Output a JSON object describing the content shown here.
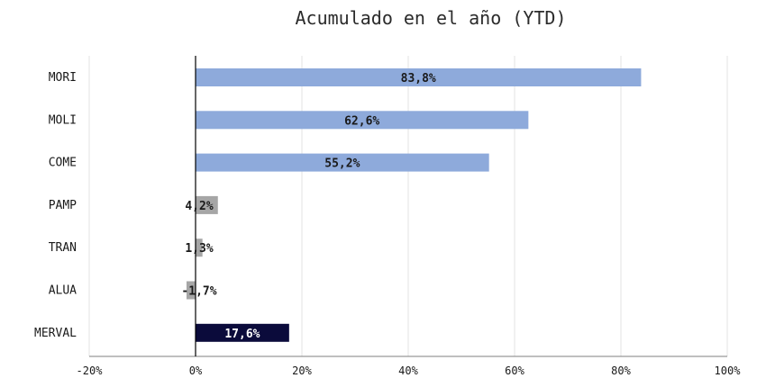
{
  "chart_data": {
    "type": "bar",
    "orientation": "horizontal",
    "title": "Acumulado en el año (YTD)",
    "xlabel": "",
    "ylabel": "",
    "categories": [
      "MORI",
      "MOLI",
      "COME",
      "PAMP",
      "TRAN",
      "ALUA",
      "MERVAL"
    ],
    "values": [
      83.8,
      62.6,
      55.2,
      4.2,
      1.3,
      -1.7,
      17.6
    ],
    "data_labels": [
      "83,8%",
      "62,6%",
      "55,2%",
      "4,2%",
      "1,3%",
      "-1,7%",
      "17,6%"
    ],
    "bar_colors": [
      "#8eaadb",
      "#8eaadb",
      "#8eaadb",
      "#a6a6a6",
      "#a6a6a6",
      "#a6a6a6",
      "#0b0b3b"
    ],
    "label_colors": [
      "#1a1a1a",
      "#1a1a1a",
      "#1a1a1a",
      "#1a1a1a",
      "#1a1a1a",
      "#1a1a1a",
      "#ffffff"
    ],
    "xlim": [
      -20,
      100
    ],
    "xticks": [
      -20,
      0,
      20,
      40,
      60,
      80,
      100
    ],
    "xtick_labels": [
      "-20%",
      "0%",
      "20%",
      "40%",
      "60%",
      "80%",
      "100%"
    ],
    "grid": true,
    "legend": "none",
    "colors": {
      "gridline": "#e3e3e3",
      "zero_axis": "#000000",
      "text": "#1a1a1a"
    }
  }
}
